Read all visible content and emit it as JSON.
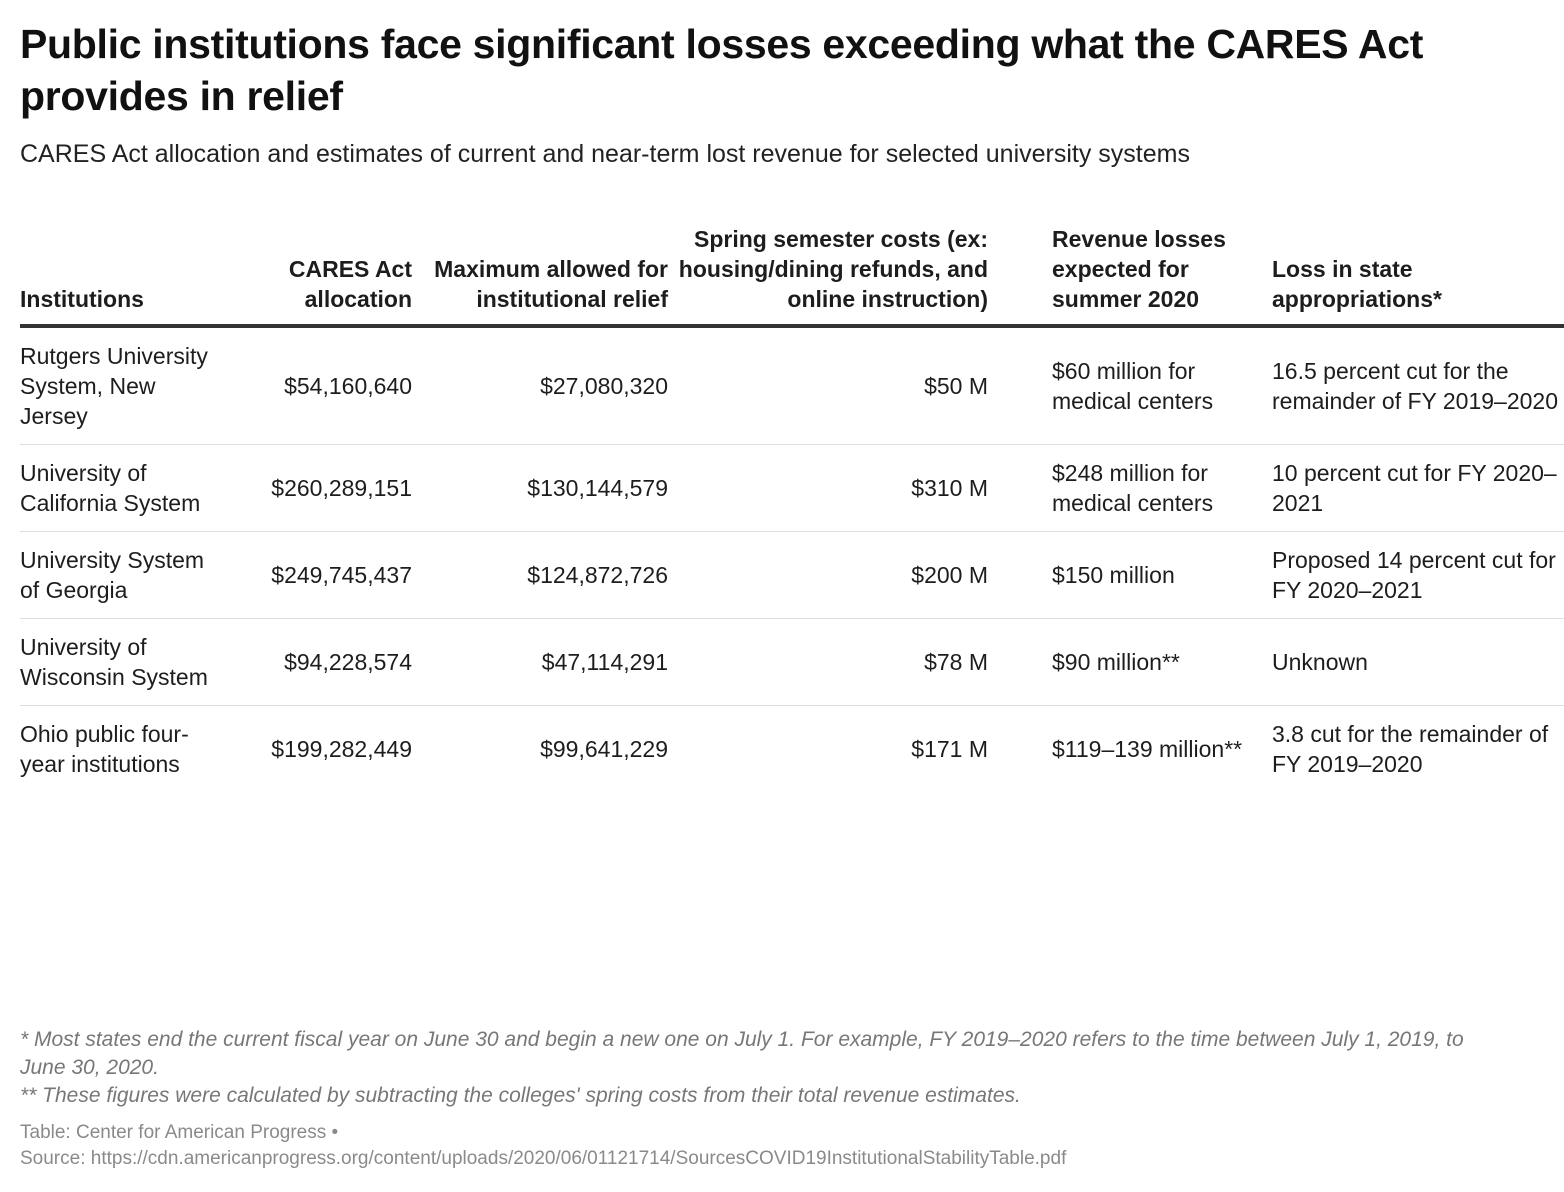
{
  "title": "Public institutions face significant losses exceeding what the CARES Act provides in relief",
  "subtitle": "CARES Act allocation and estimates of current and near-term lost revenue for selected university systems",
  "chart_data": {
    "type": "table",
    "columns": [
      "Institutions",
      "CARES Act allocation",
      "Maximum allowed for institutional relief",
      "Spring semester costs (ex: housing/dining refunds, and online instruction)",
      "Revenue losses expected for summer 2020",
      "Loss in state appropriations*"
    ],
    "rows": [
      [
        "Rutgers University System, New Jersey",
        "$54,160,640",
        "$27,080,320",
        "$50 M",
        "$60 million for medical centers",
        "16.5 percent cut for the remainder of FY 2019–2020"
      ],
      [
        "University of California System",
        "$260,289,151",
        "$130,144,579",
        "$310 M",
        "$248 million for medical centers",
        "10 percent cut for FY 2020–2021"
      ],
      [
        "University System of Georgia",
        "$249,745,437",
        "$124,872,726",
        "$200 M",
        "$150 million",
        "Proposed 14 percent cut for FY 2020–2021"
      ],
      [
        "University of Wisconsin System",
        "$94,228,574",
        "$47,114,291",
        "$78 M",
        "$90 million**",
        "Unknown"
      ],
      [
        "Ohio public four-year institutions",
        "$199,282,449",
        "$99,641,229",
        "$171 M",
        "$119–139 million**",
        "3.8 cut for the remainder of FY 2019–2020"
      ]
    ]
  },
  "notes": [
    "* Most states end the current fiscal year on June 30 and begin a new one on July 1. For example, FY 2019–2020 refers to the time between July 1, 2019, to June 30, 2020.",
    "** These figures were calculated by subtracting the colleges' spring costs from their total revenue estimates."
  ],
  "credits": {
    "table": "Table: Center for American Progress •",
    "source": "Source: https://cdn.americanprogress.org/content/uploads/2020/06/01121714/SourcesCOVID19InstitutionalStabilityTable.pdf"
  }
}
